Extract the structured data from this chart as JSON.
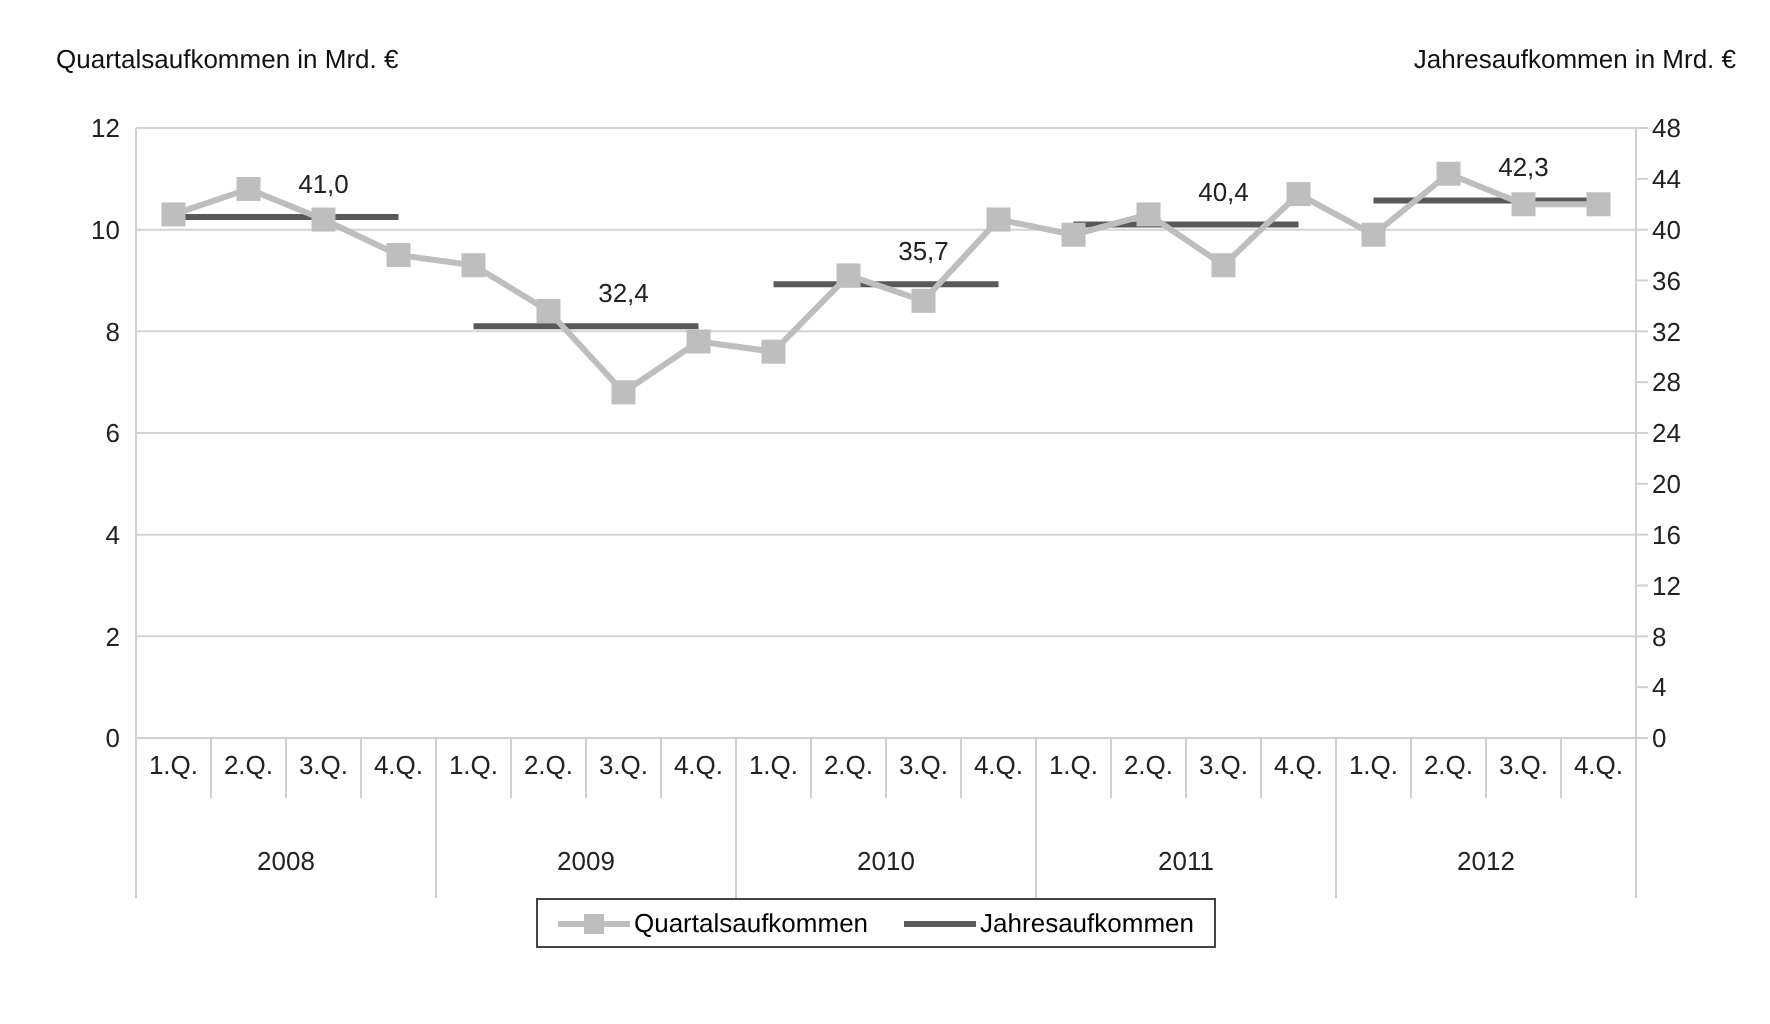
{
  "chart_data": {
    "type": "line",
    "ylabel": "Quartalsaufkommen in Mrd. €",
    "y2label": "Jahresaufkommen in Mrd. €",
    "categories": [
      "1.Q.",
      "2.Q.",
      "3.Q.",
      "4.Q.",
      "1.Q.",
      "2.Q.",
      "3.Q.",
      "4.Q.",
      "1.Q.",
      "2.Q.",
      "3.Q.",
      "4.Q.",
      "1.Q.",
      "2.Q.",
      "3.Q.",
      "4.Q.",
      "1.Q.",
      "2.Q.",
      "3.Q.",
      "4.Q."
    ],
    "series": [
      {
        "name": "Quartalsaufkommen",
        "color": "#bebebe",
        "marker": "square",
        "values": [
          10.3,
          10.8,
          10.2,
          9.5,
          9.3,
          8.4,
          6.8,
          7.8,
          7.6,
          9.1,
          8.6,
          10.2,
          9.9,
          10.3,
          9.3,
          10.7,
          9.9,
          11.1,
          10.5,
          10.5
        ]
      },
      {
        "name": "Jahresaufkommen",
        "color": "#595959",
        "marker": "none",
        "axis": "y2",
        "values": [
          41.0,
          41.0,
          41.0,
          41.0,
          32.4,
          32.4,
          32.4,
          32.4,
          35.7,
          35.7,
          35.7,
          35.7,
          40.4,
          40.4,
          40.4,
          40.4,
          42.3,
          42.3,
          42.3,
          42.3
        ],
        "value_labels": [
          null,
          null,
          "41,0",
          null,
          null,
          null,
          "32,4",
          null,
          null,
          null,
          "35,7",
          null,
          null,
          null,
          "40,4",
          null,
          null,
          null,
          "42,3",
          null
        ]
      }
    ],
    "ylim": [
      0,
      12
    ],
    "yticks": [
      0,
      2,
      4,
      6,
      8,
      10,
      12
    ],
    "y2lim": [
      0,
      48
    ],
    "y2ticks": [
      0,
      4,
      8,
      12,
      16,
      20,
      24,
      28,
      32,
      36,
      40,
      44,
      48
    ],
    "grid": "y",
    "legend": "bottom",
    "line_style": "solid",
    "annotations": [
      "2008",
      "2009",
      "2010",
      "2011",
      "2012"
    ]
  }
}
